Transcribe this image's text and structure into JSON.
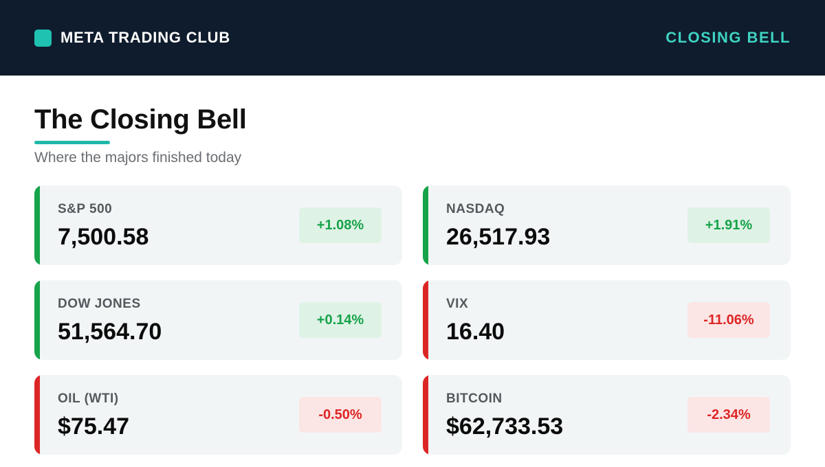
{
  "header": {
    "brand_icon": "teal-square-logo",
    "brand": "META TRADING CLUB",
    "tag": "CLOSING BELL"
  },
  "main": {
    "title": "The Closing Bell",
    "subtitle": "Where the majors finished today"
  },
  "colors": {
    "up": "#16a34a",
    "down": "#dc2626",
    "accent": "#1fb8a8",
    "header_bg": "#0f1c2d"
  },
  "markets": [
    {
      "name": "S&P 500",
      "value": "7,500.58",
      "change": "+1.08%",
      "direction": "up"
    },
    {
      "name": "NASDAQ",
      "value": "26,517.93",
      "change": "+1.91%",
      "direction": "up"
    },
    {
      "name": "DOW JONES",
      "value": "51,564.70",
      "change": "+0.14%",
      "direction": "up"
    },
    {
      "name": "VIX",
      "value": "16.40",
      "change": "-11.06%",
      "direction": "down"
    },
    {
      "name": "OIL (WTI)",
      "value": "$75.47",
      "change": "-0.50%",
      "direction": "down"
    },
    {
      "name": "BITCOIN",
      "value": "$62,733.53",
      "change": "-2.34%",
      "direction": "down"
    }
  ]
}
